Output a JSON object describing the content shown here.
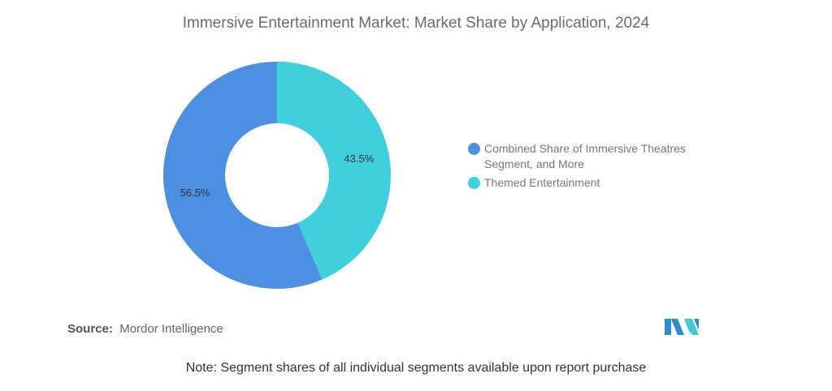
{
  "chart_data": {
    "type": "pie",
    "title": "Immersive Entertainment Market: Market Share by Application, 2024",
    "donut": true,
    "slices": [
      {
        "label": "Themed Entertainment",
        "value": 43.5,
        "display": "43.5%",
        "color": "#40d0dc"
      },
      {
        "label": "Combined Share of Immersive Theatres Segment, and More",
        "value": 56.5,
        "display": "56.5%",
        "color": "#4c8fe3"
      }
    ],
    "legend": [
      {
        "label": "Combined Share of Immersive Theatres Segment, and More",
        "color": "#4c8fe3"
      },
      {
        "label": "Themed Entertainment",
        "color": "#40d0dc"
      }
    ],
    "legend_position": "right"
  },
  "source_label": "Source:",
  "source_value": "Mordor Intelligence",
  "note": "Note: Segment shares of all individual segments available upon report purchase",
  "logo_text": "MI"
}
